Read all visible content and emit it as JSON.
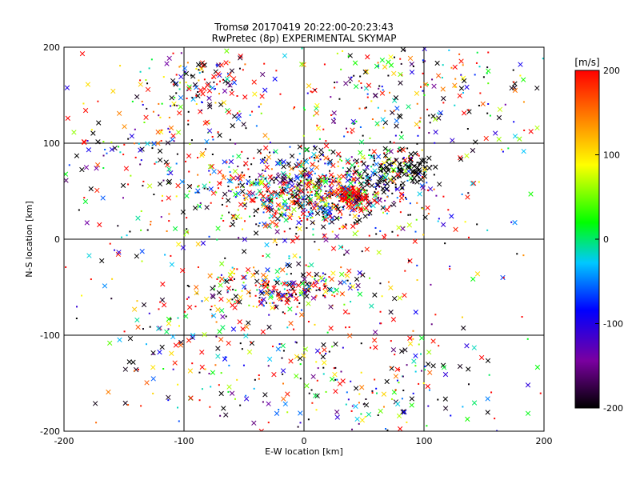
{
  "chart_data": {
    "type": "scatter",
    "title": "Tromsø 20170419 20:22:00-20:23:43",
    "subtitle": "RwPretec (8p) EXPERIMENTAL SKYMAP",
    "xlabel": "E-W location [km]",
    "ylabel": "N-S location [km]",
    "xlim": [
      -200,
      200
    ],
    "ylim": [
      -200,
      200
    ],
    "xticks": [
      -200,
      -100,
      0,
      100,
      200
    ],
    "yticks": [
      -200,
      -100,
      0,
      100,
      200
    ],
    "grid": true,
    "grid_lines": [
      -100,
      0,
      100
    ],
    "marker_types": [
      "dot",
      "cross"
    ],
    "colorbar": {
      "label": "[m/s]",
      "range": [
        -200,
        200
      ],
      "ticks": [
        200,
        100,
        0,
        -100,
        -200
      ],
      "colormap": [
        "#000000",
        "#7a00a0",
        "#0000ff",
        "#00c8ff",
        "#00ff00",
        "#ffff00",
        "#ff8000",
        "#ff0000"
      ]
    },
    "clusters": [
      {
        "x": 10,
        "y": 50,
        "sx": 45,
        "sy": 22,
        "n": 900
      },
      {
        "x": 40,
        "y": 45,
        "sx": 6,
        "sy": 5,
        "n": 120,
        "v": 200
      },
      {
        "x": 80,
        "y": 75,
        "sx": 15,
        "sy": 12,
        "n": 150,
        "v": -200
      },
      {
        "x": -10,
        "y": -50,
        "sx": 35,
        "sy": 12,
        "n": 250
      },
      {
        "x": -80,
        "y": 160,
        "sx": 20,
        "sy": 18,
        "n": 120
      },
      {
        "x": 80,
        "y": 160,
        "sx": 60,
        "sy": 35,
        "n": 250
      },
      {
        "x": 50,
        "y": -150,
        "sx": 50,
        "sy": 40,
        "n": 200
      },
      {
        "x": -130,
        "y": 90,
        "sx": 40,
        "sy": 40,
        "n": 160
      },
      {
        "x": -100,
        "y": -100,
        "sx": 45,
        "sy": 50,
        "n": 160
      },
      {
        "x": 0,
        "y": 0,
        "sx": 140,
        "sy": 140,
        "n": 350
      }
    ]
  }
}
